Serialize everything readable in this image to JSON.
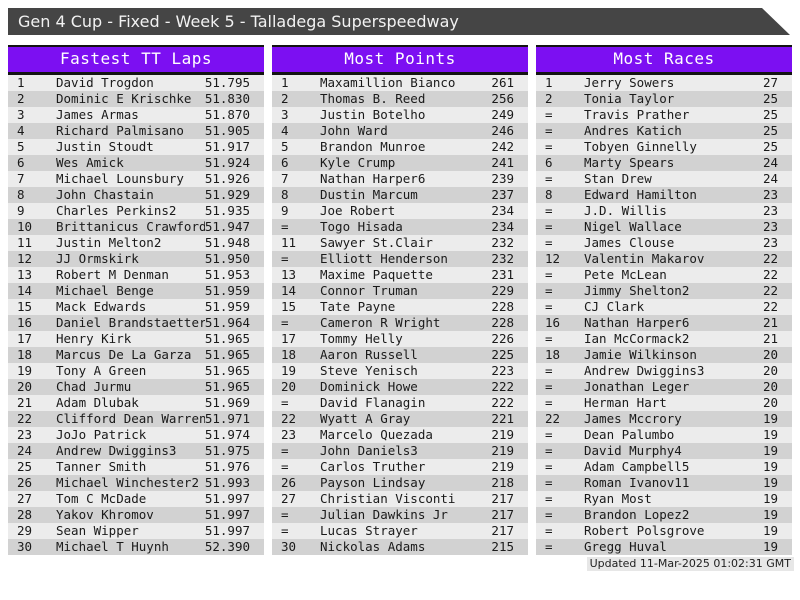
{
  "page": {
    "title": "Gen 4 Cup - Fixed - Week 5 - Talladega Superspeedway",
    "footer": "Updated 11-Mar-2025 01:02:31 GMT"
  },
  "colors": {
    "title_bar_bg": "#454545",
    "title_bar_text": "#f2f2f2",
    "table_header_bg": "#7c0ff2",
    "table_header_text": "#ffffff",
    "row_odd": "#ececec",
    "row_even": "#d2d2d2",
    "footer_bg": "#e7e7e7"
  },
  "tables": [
    {
      "title": "Fastest TT Laps",
      "columns": [
        "rank",
        "driver",
        "lap_time"
      ],
      "rows": [
        [
          "1",
          "David Trogdon",
          "51.795"
        ],
        [
          "2",
          "Dominic E Krischke",
          "51.830"
        ],
        [
          "3",
          "James Armas",
          "51.870"
        ],
        [
          "4",
          "Richard Palmisano",
          "51.905"
        ],
        [
          "5",
          "Justin Stoudt",
          "51.917"
        ],
        [
          "6",
          "Wes Amick",
          "51.924"
        ],
        [
          "7",
          "Michael Lounsbury",
          "51.926"
        ],
        [
          "8",
          "John Chastain",
          "51.929"
        ],
        [
          "9",
          "Charles Perkins2",
          "51.935"
        ],
        [
          "10",
          "Brittanicus Crawford",
          "51.947"
        ],
        [
          "11",
          "Justin Melton2",
          "51.948"
        ],
        [
          "12",
          "JJ Ormskirk",
          "51.950"
        ],
        [
          "13",
          "Robert M Denman",
          "51.953"
        ],
        [
          "14",
          "Michael Benge",
          "51.959"
        ],
        [
          "15",
          "Mack Edwards",
          "51.959"
        ],
        [
          "16",
          "Daniel Brandstaetter",
          "51.964"
        ],
        [
          "17",
          "Henry Kirk",
          "51.965"
        ],
        [
          "18",
          "Marcus De La Garza",
          "51.965"
        ],
        [
          "19",
          "Tony A Green",
          "51.965"
        ],
        [
          "20",
          "Chad Jurmu",
          "51.965"
        ],
        [
          "21",
          "Adam Dlubak",
          "51.969"
        ],
        [
          "22",
          "Clifford Dean Warren",
          "51.971"
        ],
        [
          "23",
          "JoJo Patrick",
          "51.974"
        ],
        [
          "24",
          "Andrew Dwiggins3",
          "51.975"
        ],
        [
          "25",
          "Tanner Smith",
          "51.976"
        ],
        [
          "26",
          "Michael Winchester2",
          "51.993"
        ],
        [
          "27",
          "Tom C McDade",
          "51.997"
        ],
        [
          "28",
          "Yakov Khromov",
          "51.997"
        ],
        [
          "29",
          "Sean Wipper",
          "51.997"
        ],
        [
          "30",
          "Michael T Huynh",
          "52.390"
        ]
      ]
    },
    {
      "title": "Most Points",
      "columns": [
        "rank",
        "driver",
        "points"
      ],
      "rows": [
        [
          "1",
          "Maxamillion Bianco",
          "261"
        ],
        [
          "2",
          "Thomas B. Reed",
          "256"
        ],
        [
          "3",
          "Justin Botelho",
          "249"
        ],
        [
          "4",
          "John Ward",
          "246"
        ],
        [
          "5",
          "Brandon Munroe",
          "242"
        ],
        [
          "6",
          "Kyle Crump",
          "241"
        ],
        [
          "7",
          "Nathan Harper6",
          "239"
        ],
        [
          "8",
          "Dustin Marcum",
          "237"
        ],
        [
          "9",
          "Joe Robert",
          "234"
        ],
        [
          "=",
          "Togo Hisada",
          "234"
        ],
        [
          "11",
          "Sawyer St.Clair",
          "232"
        ],
        [
          "=",
          "Elliott Henderson",
          "232"
        ],
        [
          "13",
          "Maxime Paquette",
          "231"
        ],
        [
          "14",
          "Connor Truman",
          "229"
        ],
        [
          "15",
          "Tate Payne",
          "228"
        ],
        [
          "=",
          "Cameron R Wright",
          "228"
        ],
        [
          "17",
          "Tommy Helly",
          "226"
        ],
        [
          "18",
          "Aaron Russell",
          "225"
        ],
        [
          "19",
          "Steve Yenisch",
          "223"
        ],
        [
          "20",
          "Dominick Howe",
          "222"
        ],
        [
          "=",
          "David Flanagin",
          "222"
        ],
        [
          "22",
          "Wyatt A Gray",
          "221"
        ],
        [
          "23",
          "Marcelo Quezada",
          "219"
        ],
        [
          "=",
          "John Daniels3",
          "219"
        ],
        [
          "=",
          "Carlos Truther",
          "219"
        ],
        [
          "26",
          "Payson Lindsay",
          "218"
        ],
        [
          "27",
          "Christian Visconti",
          "217"
        ],
        [
          "=",
          "Julian Dawkins Jr",
          "217"
        ],
        [
          "=",
          "Lucas Strayer",
          "217"
        ],
        [
          "30",
          "Nickolas Adams",
          "215"
        ]
      ]
    },
    {
      "title": "Most Races",
      "columns": [
        "rank",
        "driver",
        "races"
      ],
      "rows": [
        [
          "1",
          "Jerry Sowers",
          "27"
        ],
        [
          "2",
          "Tonia Taylor",
          "25"
        ],
        [
          "=",
          "Travis Prather",
          "25"
        ],
        [
          "=",
          "Andres Katich",
          "25"
        ],
        [
          "=",
          "Tobyen Ginnelly",
          "25"
        ],
        [
          "6",
          "Marty Spears",
          "24"
        ],
        [
          "=",
          "Stan Drew",
          "24"
        ],
        [
          "8",
          "Edward Hamilton",
          "23"
        ],
        [
          "=",
          "J.D. Willis",
          "23"
        ],
        [
          "=",
          "Nigel Wallace",
          "23"
        ],
        [
          "=",
          "James Clouse",
          "23"
        ],
        [
          "12",
          "Valentin Makarov",
          "22"
        ],
        [
          "=",
          "Pete McLean",
          "22"
        ],
        [
          "=",
          "Jimmy Shelton2",
          "22"
        ],
        [
          "=",
          "CJ Clark",
          "22"
        ],
        [
          "16",
          "Nathan Harper6",
          "21"
        ],
        [
          "=",
          "Ian McCormack2",
          "21"
        ],
        [
          "18",
          "Jamie Wilkinson",
          "20"
        ],
        [
          "=",
          "Andrew Dwiggins3",
          "20"
        ],
        [
          "=",
          "Jonathan Leger",
          "20"
        ],
        [
          "=",
          "Herman Hart",
          "20"
        ],
        [
          "22",
          "James Mccrory",
          "19"
        ],
        [
          "=",
          "Dean Palumbo",
          "19"
        ],
        [
          "=",
          "David Murphy4",
          "19"
        ],
        [
          "=",
          "Adam Campbell5",
          "19"
        ],
        [
          "=",
          "Roman Ivanov11",
          "19"
        ],
        [
          "=",
          "Ryan Most",
          "19"
        ],
        [
          "=",
          "Brandon Lopez2",
          "19"
        ],
        [
          "=",
          "Robert Polsgrove",
          "19"
        ],
        [
          "=",
          "Gregg Huval",
          "19"
        ]
      ]
    }
  ]
}
